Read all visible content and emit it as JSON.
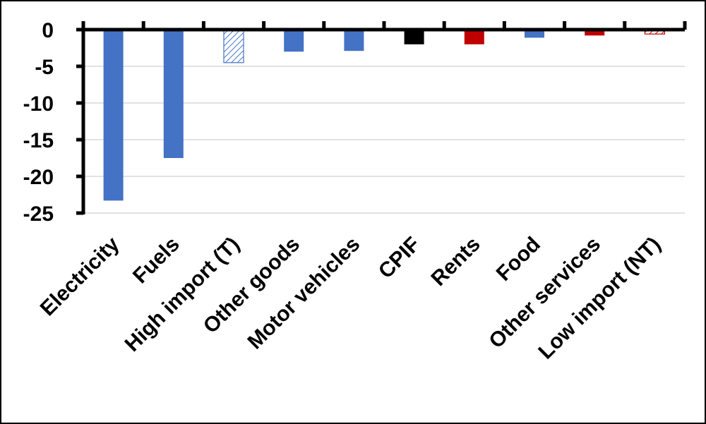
{
  "chart_data": {
    "type": "bar",
    "categories": [
      "Electricity",
      "Fuels",
      "High import (T)",
      "Other goods",
      "Motor vehicles",
      "CPIF",
      "Rents",
      "Food",
      "Other services",
      "Low import (NT)"
    ],
    "values": [
      -23.3,
      -17.5,
      -4.5,
      -3.0,
      -2.9,
      -2.0,
      -2.0,
      -1.1,
      -0.8,
      -0.6
    ],
    "bar_styles": [
      "solid",
      "solid",
      "hatched",
      "solid",
      "solid",
      "solid",
      "solid",
      "solid",
      "solid",
      "hatched"
    ],
    "bar_colors": [
      "#4472C4",
      "#4472C4",
      "#4472C4",
      "#4472C4",
      "#4472C4",
      "#000000",
      "#C00000",
      "#4472C4",
      "#C00000",
      "#C00000"
    ],
    "ylim": [
      -25,
      0
    ],
    "yticks": [
      0,
      -5,
      -10,
      -15,
      -20,
      -25
    ],
    "grid": true,
    "title": "",
    "xlabel": "",
    "ylabel": ""
  }
}
